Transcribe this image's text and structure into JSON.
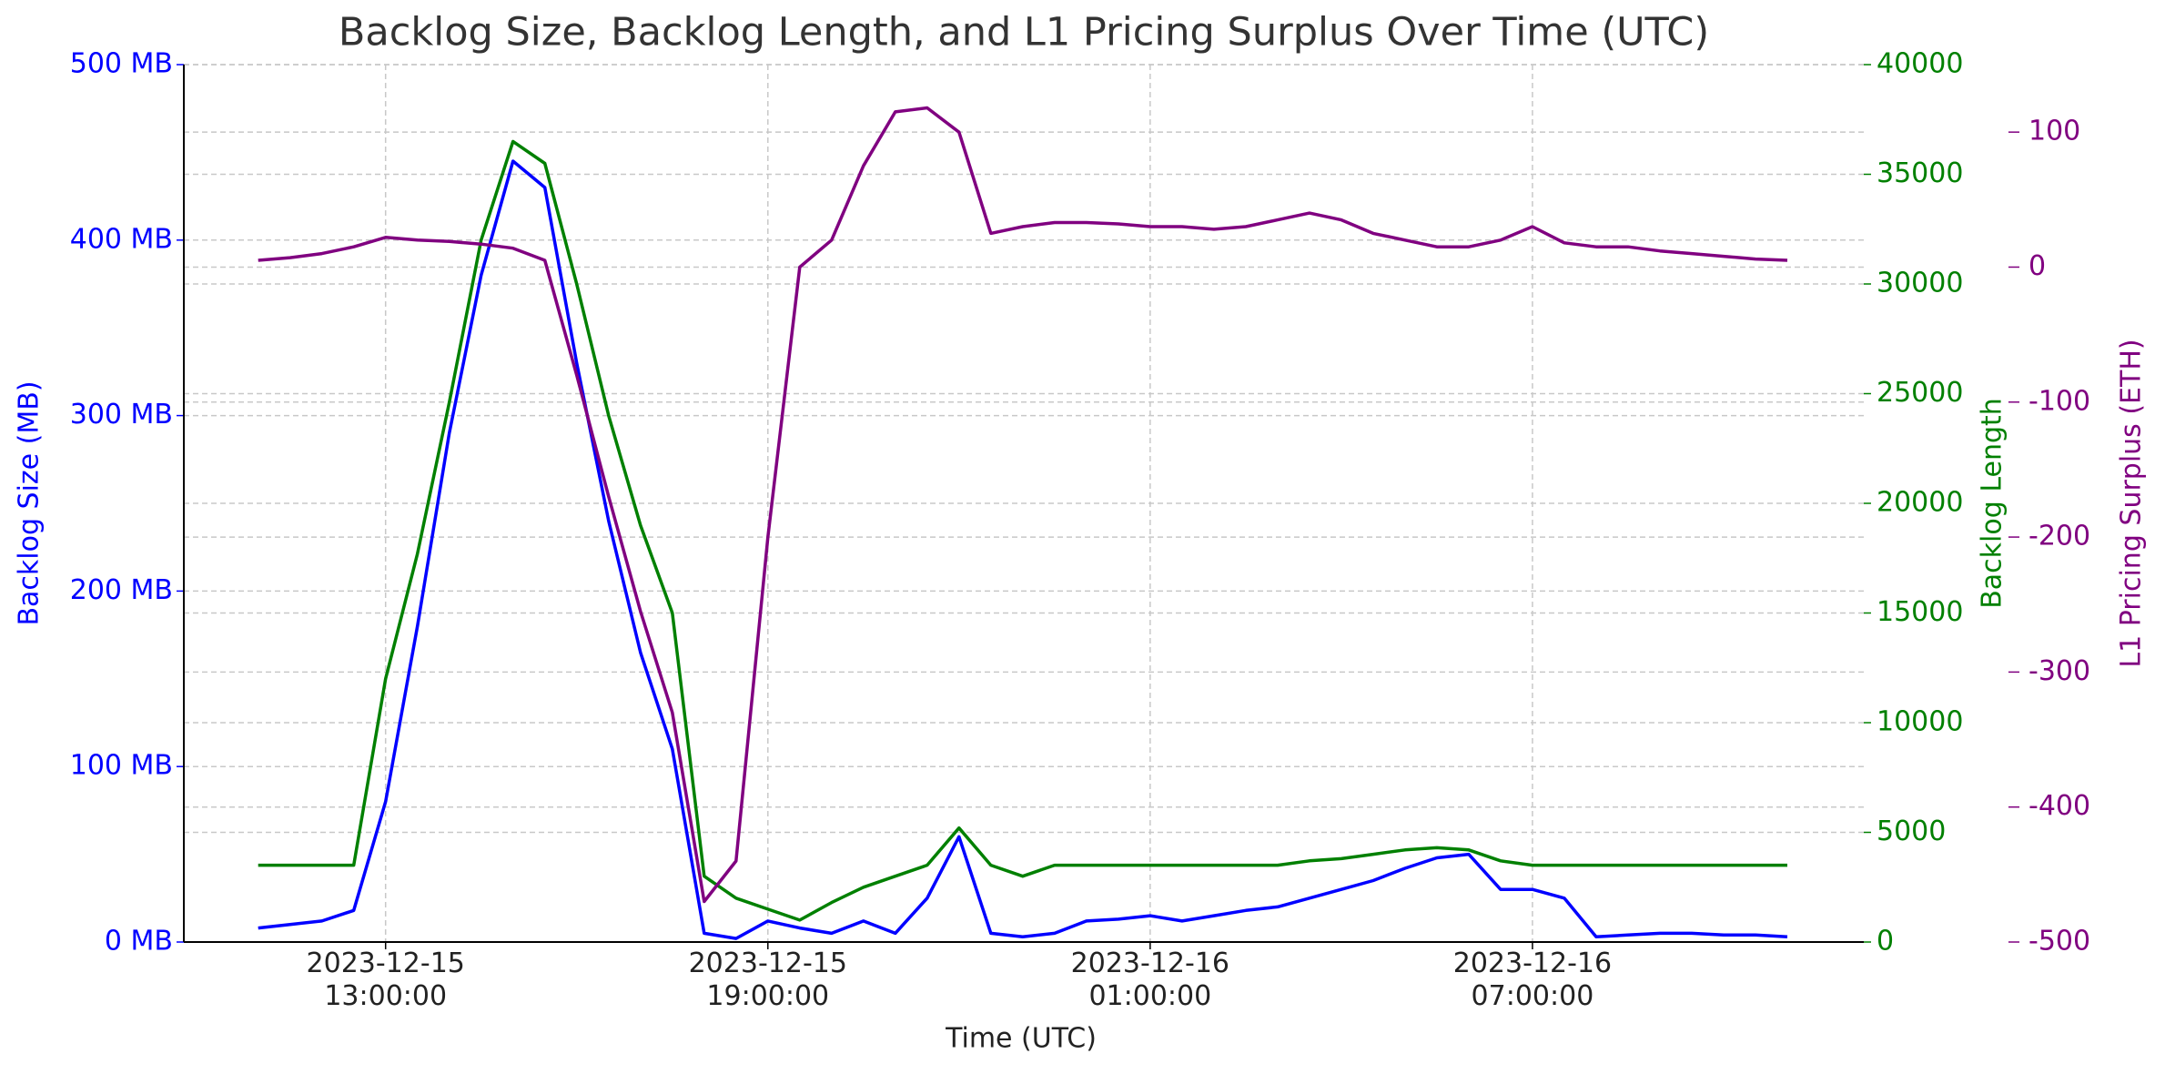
{
  "chart_data": {
    "type": "line",
    "title": "Backlog Size, Backlog Length, and L1 Pricing Surplus Over Time (UTC)",
    "xlabel": "Time (UTC)",
    "ylabel": "Backlog Size (MB)",
    "y2label": "Backlog Length",
    "y3label": "L1 Pricing Surplus (ETH)",
    "grid": true,
    "xlim": [
      "2023-12-15T09:50:00",
      "2023-12-16T12:12:00"
    ],
    "xticks": [
      {
        "value": "2023-12-15T13:00:00",
        "label": "2023-12-15\n13:00:00"
      },
      {
        "value": "2023-12-15T19:00:00",
        "label": "2023-12-15\n19:00:00"
      },
      {
        "value": "2023-12-16T01:00:00",
        "label": "2023-12-16\n01:00:00"
      },
      {
        "value": "2023-12-16T07:00:00",
        "label": "2023-12-16\n07:00:00"
      }
    ],
    "ylim": [
      0,
      500
    ],
    "yticks": [
      {
        "value": 0,
        "label": "0 MB"
      },
      {
        "value": 100,
        "label": "100 MB"
      },
      {
        "value": 200,
        "label": "200 MB"
      },
      {
        "value": 300,
        "label": "300 MB"
      },
      {
        "value": 400,
        "label": "400 MB"
      },
      {
        "value": 500,
        "label": "500 MB"
      }
    ],
    "y2lim": [
      0,
      40000
    ],
    "y2ticks": [
      0,
      5000,
      10000,
      15000,
      20000,
      25000,
      30000,
      35000,
      40000
    ],
    "y3lim": [
      -500,
      150
    ],
    "y3ticks": [
      -500,
      -400,
      -300,
      -200,
      -100,
      0,
      100
    ],
    "x": [
      "2023-12-15T11:00:00",
      "2023-12-15T11:30:00",
      "2023-12-15T12:00:00",
      "2023-12-15T12:30:00",
      "2023-12-15T13:00:00",
      "2023-12-15T13:30:00",
      "2023-12-15T14:00:00",
      "2023-12-15T14:30:00",
      "2023-12-15T15:00:00",
      "2023-12-15T15:30:00",
      "2023-12-15T16:00:00",
      "2023-12-15T16:30:00",
      "2023-12-15T17:00:00",
      "2023-12-15T17:30:00",
      "2023-12-15T18:00:00",
      "2023-12-15T18:30:00",
      "2023-12-15T19:00:00",
      "2023-12-15T19:30:00",
      "2023-12-15T20:00:00",
      "2023-12-15T20:30:00",
      "2023-12-15T21:00:00",
      "2023-12-15T21:30:00",
      "2023-12-15T22:00:00",
      "2023-12-15T22:30:00",
      "2023-12-15T23:00:00",
      "2023-12-15T23:30:00",
      "2023-12-16T00:00:00",
      "2023-12-16T00:30:00",
      "2023-12-16T01:00:00",
      "2023-12-16T01:30:00",
      "2023-12-16T02:00:00",
      "2023-12-16T02:30:00",
      "2023-12-16T03:00:00",
      "2023-12-16T03:30:00",
      "2023-12-16T04:00:00",
      "2023-12-16T04:30:00",
      "2023-12-16T05:00:00",
      "2023-12-16T05:30:00",
      "2023-12-16T06:00:00",
      "2023-12-16T06:30:00",
      "2023-12-16T07:00:00",
      "2023-12-16T07:30:00",
      "2023-12-16T08:00:00",
      "2023-12-16T08:30:00",
      "2023-12-16T09:00:00",
      "2023-12-16T09:30:00",
      "2023-12-16T10:00:00",
      "2023-12-16T10:30:00",
      "2023-12-16T11:00:00"
    ],
    "series": [
      {
        "color": "#0000ff",
        "axis": "y",
        "values": [
          8,
          10,
          12,
          18,
          80,
          180,
          290,
          380,
          445,
          430,
          330,
          240,
          165,
          110,
          5,
          2,
          12,
          8,
          5,
          12,
          5,
          25,
          60,
          5,
          3,
          5,
          12,
          13,
          15,
          12,
          15,
          18,
          20,
          25,
          30,
          35,
          42,
          48,
          50,
          30,
          30,
          25,
          3,
          4,
          5,
          5,
          4,
          4,
          3
        ]
      },
      {
        "color": "#008000",
        "axis": "y2",
        "values": [
          3500,
          3500,
          3500,
          3500,
          12000,
          17700,
          24600,
          32000,
          36500,
          35500,
          30000,
          24000,
          19000,
          15000,
          3000,
          2000,
          1500,
          1000,
          1800,
          2500,
          3000,
          3500,
          5200,
          3500,
          3000,
          3500,
          3500,
          3500,
          3500,
          3500,
          3500,
          3500,
          3500,
          3700,
          3800,
          4000,
          4200,
          4300,
          4200,
          3700,
          3500,
          3500,
          3500,
          3500,
          3500,
          3500,
          3500,
          3500,
          3500
        ]
      },
      {
        "color": "#800080",
        "axis": "y3",
        "values": [
          5,
          7,
          10,
          15,
          22,
          20,
          19,
          17,
          14,
          5,
          -80,
          -170,
          -255,
          -330,
          -470,
          -440,
          -200,
          0,
          20,
          75,
          115,
          118,
          100,
          25,
          30,
          33,
          33,
          32,
          30,
          30,
          28,
          30,
          35,
          40,
          35,
          25,
          20,
          15,
          15,
          20,
          30,
          18,
          15,
          15,
          12,
          10,
          8,
          6,
          5
        ]
      }
    ]
  }
}
